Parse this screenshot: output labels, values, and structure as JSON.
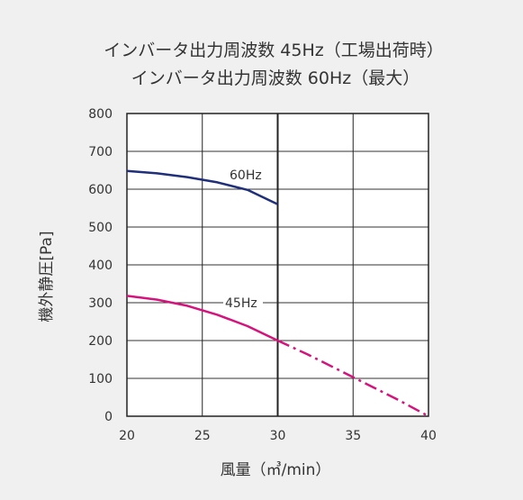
{
  "chart_data": {
    "type": "line",
    "title_lines": [
      "インバータ出力周波数 45Hz（工場出荷時）",
      "インバータ出力周波数 60Hz（最大）"
    ],
    "xlabel": "風量（㎥/min）",
    "ylabel": "機外静圧[Pa]",
    "x_ticks": [
      20,
      25,
      30,
      35,
      40
    ],
    "y_ticks": [
      0,
      100,
      200,
      300,
      400,
      500,
      600,
      700,
      800
    ],
    "xlim": [
      20,
      40
    ],
    "ylim": [
      0,
      800
    ],
    "grid": true,
    "series": [
      {
        "name": "60Hz",
        "color": "#1f2f7a",
        "style": "solid",
        "x": [
          20,
          22,
          24,
          26,
          28,
          30
        ],
        "y": [
          648,
          642,
          632,
          618,
          598,
          560
        ]
      },
      {
        "name": "45Hz",
        "color": "#d4147c",
        "style": "solid",
        "x": [
          20,
          22,
          24,
          26,
          28,
          30
        ],
        "y": [
          318,
          308,
          292,
          268,
          238,
          200
        ]
      },
      {
        "name": "",
        "color": "#d4147c",
        "style": "dash-dot",
        "x": [
          30,
          32,
          34,
          36,
          38,
          40
        ],
        "y": [
          200,
          163,
          123,
          83,
          43,
          0
        ]
      }
    ],
    "annotations": [
      {
        "text": "60Hz",
        "series": 0
      },
      {
        "text": "45Hz",
        "series": 1
      }
    ]
  }
}
